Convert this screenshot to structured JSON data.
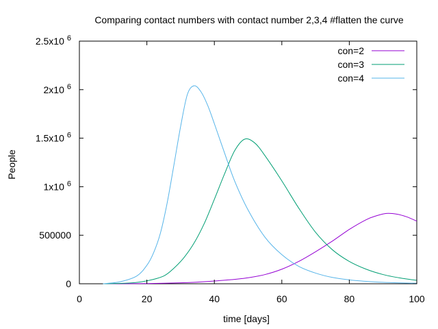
{
  "chart_data": {
    "type": "line",
    "title": "Comparing contact numbers with contact number 2,3,4 #flatten the curve",
    "xlabel": "time [days]",
    "ylabel": "People",
    "xlim": [
      0,
      100
    ],
    "ylim": [
      0,
      2500000
    ],
    "xticks": [
      0,
      20,
      40,
      60,
      80,
      100
    ],
    "xtick_labels": [
      "0",
      "20",
      "40",
      "60",
      "80",
      "100"
    ],
    "yticks": [
      0,
      500000,
      1000000,
      1500000,
      2000000,
      2500000
    ],
    "ytick_labels": [
      {
        "mant": "0",
        "exp": ""
      },
      {
        "mant": "500000",
        "exp": ""
      },
      {
        "mant": "1x10",
        "exp": "6"
      },
      {
        "mant": "1.5x10",
        "exp": "6"
      },
      {
        "mant": "2x10",
        "exp": "6"
      },
      {
        "mant": "2.5x10",
        "exp": "6"
      }
    ],
    "grid": false,
    "legend_position": "top-right",
    "series": [
      {
        "name": "con=2",
        "color": "#9400d3",
        "x": [
          7,
          15,
          20,
          25,
          30,
          35,
          40,
          45,
          50,
          55,
          60,
          65,
          70,
          75,
          80,
          85,
          88,
          91,
          94,
          97,
          100
        ],
        "y": [
          0,
          1000,
          2000,
          5000,
          10000,
          17000,
          28000,
          42000,
          62000,
          95000,
          150000,
          230000,
          330000,
          440000,
          560000,
          660000,
          700000,
          725000,
          718000,
          690000,
          645000
        ]
      },
      {
        "name": "con=3",
        "color": "#009e73",
        "x": [
          7,
          15,
          20,
          25,
          28,
          31,
          34,
          37,
          40,
          43,
          46,
          49,
          52,
          55,
          60,
          65,
          70,
          75,
          80,
          85,
          90,
          95,
          100
        ],
        "y": [
          0,
          8000,
          30000,
          80000,
          160000,
          270000,
          420000,
          620000,
          870000,
          1130000,
          1370000,
          1490000,
          1450000,
          1320000,
          1060000,
          780000,
          530000,
          350000,
          230000,
          150000,
          95000,
          60000,
          35000
        ]
      },
      {
        "name": "con=4",
        "color": "#56b4e9",
        "x": [
          7,
          12,
          17,
          20,
          22,
          24,
          26,
          28,
          30,
          32,
          34,
          36,
          38,
          40,
          43,
          46,
          50,
          55,
          60,
          65,
          70,
          75,
          80,
          85,
          90,
          95,
          100
        ],
        "y": [
          0,
          20000,
          80000,
          190000,
          320000,
          520000,
          830000,
          1220000,
          1620000,
          1950000,
          2040000,
          1980000,
          1840000,
          1650000,
          1350000,
          1060000,
          760000,
          480000,
          300000,
          180000,
          110000,
          65000,
          40000,
          25000,
          15000,
          9000,
          5000
        ]
      }
    ]
  }
}
